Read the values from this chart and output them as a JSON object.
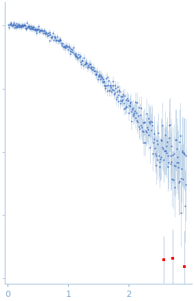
{
  "xlim": [
    -0.05,
    3.05
  ],
  "x_ticks": [
    0,
    1,
    2
  ],
  "point_color": "#4472C4",
  "error_color": "#A8C4E0",
  "outlier_color": "#FF0000",
  "bg_color": "#FFFFFF",
  "axis_color": "#A8C4E0",
  "spine_color": "#A8C4E0",
  "tick_label_color": "#7BA7D0",
  "figsize": [
    2.82,
    4.37
  ],
  "dpi": 100
}
